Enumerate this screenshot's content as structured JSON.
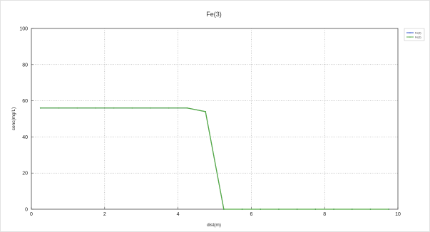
{
  "chart_data": {
    "type": "line",
    "title": "Fe(3)",
    "xlabel": "dist(m)",
    "ylabel": "conc(mg/L)",
    "xlim": [
      0,
      10
    ],
    "ylim": [
      0,
      100
    ],
    "x_ticks": [
      0,
      2,
      4,
      6,
      8,
      10
    ],
    "y_ticks": [
      0,
      20,
      40,
      60,
      80,
      100
    ],
    "grid": true,
    "legend_position": "top-right",
    "series": [
      {
        "name": "Fe(3)",
        "color": "#3355cc",
        "x": [
          0.25,
          0.75,
          1.25,
          1.75,
          2.25,
          2.75,
          3.25,
          3.75,
          4.25,
          4.75,
          5.25,
          5.75,
          6.25,
          6.75,
          7.25,
          7.75,
          8.25,
          8.75,
          9.25,
          9.75
        ],
        "values": [
          56,
          56,
          56,
          56,
          56,
          56,
          56,
          56,
          56,
          54,
          0,
          0,
          0,
          0,
          0,
          0,
          0,
          0,
          0,
          0
        ]
      },
      {
        "name": "Fe(3)",
        "color": "#55aa44",
        "x": [
          0.25,
          0.75,
          1.25,
          1.75,
          2.25,
          2.75,
          3.25,
          3.75,
          4.25,
          4.75,
          5.25,
          5.75,
          6.25,
          6.75,
          7.25,
          7.75,
          8.25,
          8.75,
          9.25,
          9.75
        ],
        "values": [
          56,
          56,
          56,
          56,
          56,
          56,
          56,
          56,
          56,
          54,
          0,
          0,
          0,
          0,
          0,
          0,
          0,
          0,
          0,
          0
        ]
      }
    ]
  }
}
